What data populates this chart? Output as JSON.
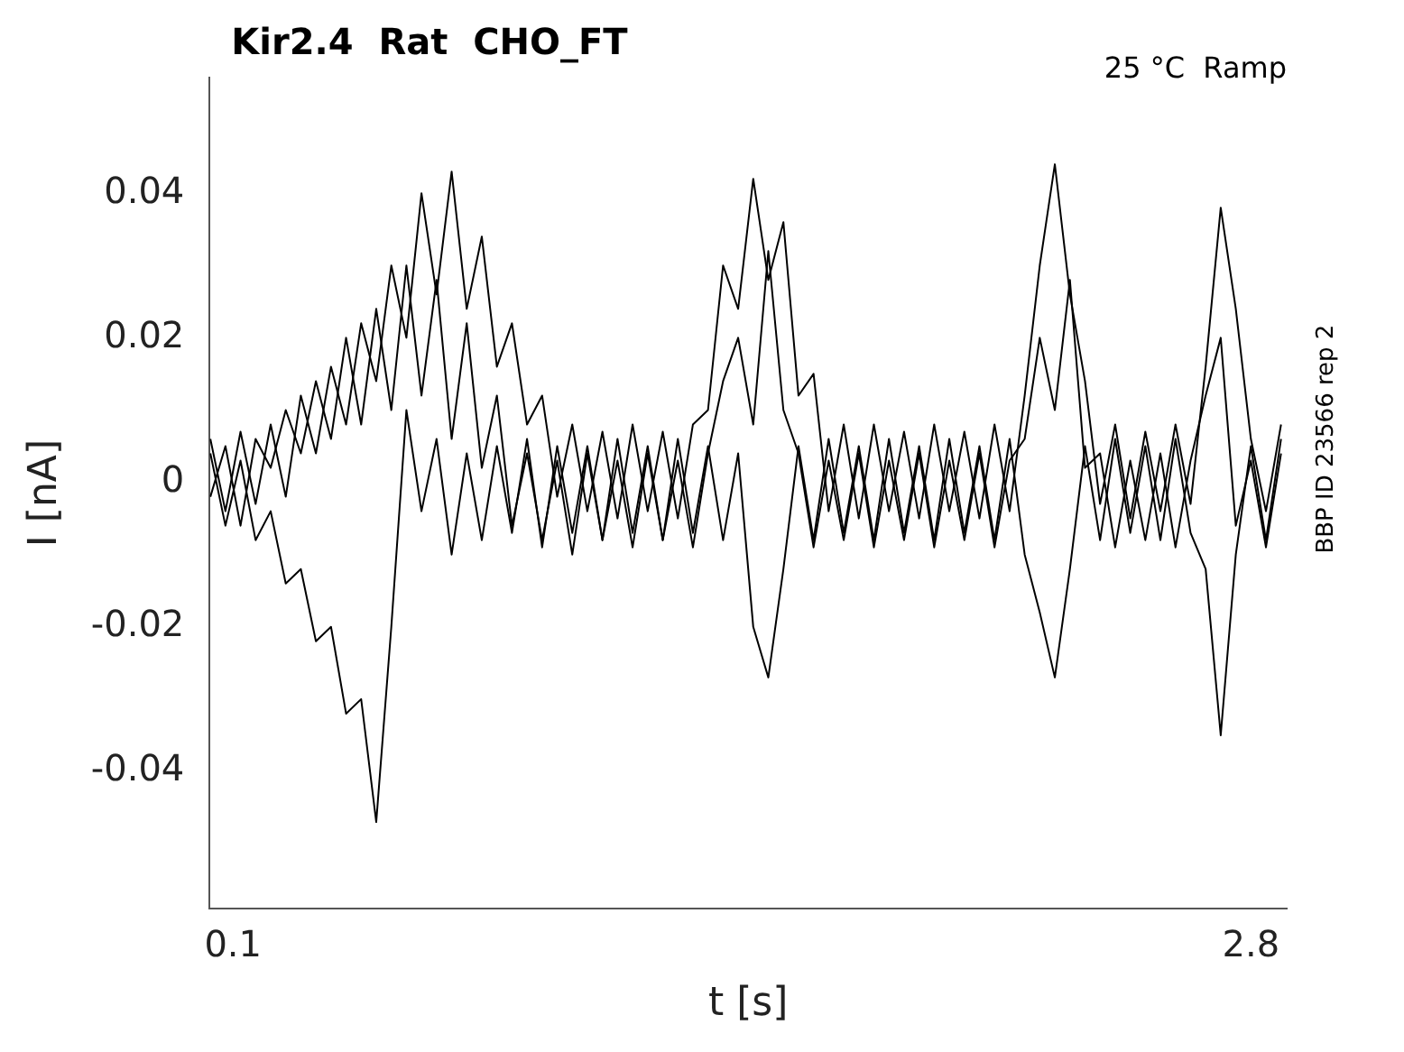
{
  "chart_data": {
    "type": "line",
    "title": "Kir2.4  Rat  CHO_FT",
    "xlabel": "t [s]",
    "ylabel": "I [nA]",
    "annotations": [
      "25 °C  Ramp",
      "BBP ID 23566 rep 2"
    ],
    "x": [
      0.04,
      0.08,
      0.12,
      0.16,
      0.2,
      0.24,
      0.28,
      0.32,
      0.36,
      0.4,
      0.44,
      0.48,
      0.52,
      0.56,
      0.6,
      0.64,
      0.68,
      0.72,
      0.76,
      0.8,
      0.84,
      0.88,
      0.92,
      0.96,
      1.0,
      1.04,
      1.08,
      1.12,
      1.16,
      1.2,
      1.24,
      1.28,
      1.32,
      1.36,
      1.4,
      1.44,
      1.48,
      1.52,
      1.56,
      1.6,
      1.64,
      1.68,
      1.72,
      1.76,
      1.8,
      1.84,
      1.88,
      1.92,
      1.96,
      2.0,
      2.04,
      2.08,
      2.12,
      2.16,
      2.2,
      2.24,
      2.28,
      2.32,
      2.36,
      2.4,
      2.44,
      2.48,
      2.52,
      2.56,
      2.6,
      2.64,
      2.68,
      2.72,
      2.76,
      2.8,
      2.84,
      2.88
    ],
    "xlim": [
      0.038,
      2.895
    ],
    "xticks": [
      0.1,
      2.8
    ],
    "ylim": [
      -0.059,
      0.056
    ],
    "yticks": [
      -0.04,
      -0.02,
      0,
      0.02,
      0.04
    ],
    "grid": false,
    "legend": false,
    "marker": "none",
    "line_style": "solid",
    "series": [
      {
        "color": "#000000",
        "values": [
          0.006,
          -0.004,
          0.007,
          -0.003,
          0.008,
          -0.002,
          0.012,
          0.004,
          0.016,
          0.008,
          0.022,
          0.014,
          0.03,
          0.02,
          0.04,
          0.026,
          0.043,
          0.024,
          0.034,
          0.016,
          0.022,
          0.008,
          0.012,
          -0.002,
          0.008,
          -0.004,
          0.007,
          -0.005,
          0.008,
          -0.004,
          0.007,
          -0.005,
          0.008,
          0.01,
          0.03,
          0.024,
          0.042,
          0.028,
          0.036,
          0.012,
          0.015,
          -0.004,
          0.008,
          -0.005,
          0.008,
          -0.004,
          0.007,
          -0.005,
          0.008,
          -0.004,
          0.007,
          -0.005,
          0.008,
          -0.004,
          0.012,
          0.03,
          0.044,
          0.026,
          0.014,
          -0.003,
          0.008,
          -0.005,
          0.007,
          -0.004,
          0.008,
          -0.003,
          0.016,
          0.038,
          0.024,
          0.006,
          -0.004,
          0.008
        ]
      },
      {
        "color": "#000000",
        "values": [
          0.004,
          -0.006,
          0.003,
          -0.008,
          -0.004,
          -0.014,
          -0.012,
          -0.022,
          -0.02,
          -0.032,
          -0.03,
          -0.047,
          -0.02,
          0.01,
          -0.004,
          0.006,
          -0.01,
          0.004,
          -0.008,
          0.005,
          -0.007,
          0.006,
          -0.009,
          0.005,
          -0.007,
          0.005,
          -0.008,
          0.006,
          -0.007,
          0.005,
          -0.008,
          0.006,
          -0.007,
          0.005,
          -0.008,
          0.004,
          -0.02,
          -0.027,
          -0.012,
          0.005,
          -0.008,
          0.006,
          -0.007,
          0.005,
          -0.008,
          0.006,
          -0.007,
          0.005,
          -0.008,
          0.006,
          -0.007,
          0.005,
          -0.008,
          0.006,
          -0.01,
          -0.018,
          -0.027,
          -0.012,
          0.005,
          -0.008,
          0.006,
          -0.007,
          0.005,
          -0.008,
          0.006,
          -0.007,
          -0.012,
          -0.035,
          -0.01,
          0.005,
          -0.008,
          0.006
        ]
      },
      {
        "color": "#000000",
        "values": [
          -0.002,
          0.005,
          -0.006,
          0.006,
          0.002,
          0.01,
          0.004,
          0.014,
          0.006,
          0.02,
          0.008,
          0.024,
          0.01,
          0.03,
          0.012,
          0.028,
          0.006,
          0.022,
          0.002,
          0.012,
          -0.006,
          0.004,
          -0.008,
          0.003,
          -0.01,
          0.004,
          -0.008,
          0.003,
          -0.009,
          0.004,
          -0.008,
          0.003,
          -0.009,
          0.004,
          0.014,
          0.02,
          0.008,
          0.032,
          0.01,
          0.004,
          -0.009,
          0.003,
          -0.008,
          0.004,
          -0.009,
          0.003,
          -0.008,
          0.004,
          -0.009,
          0.003,
          -0.008,
          0.004,
          -0.009,
          0.003,
          0.006,
          0.02,
          0.01,
          0.028,
          0.002,
          0.004,
          -0.009,
          0.003,
          -0.008,
          0.004,
          -0.009,
          0.003,
          0.012,
          0.02,
          -0.006,
          0.003,
          -0.009,
          0.004
        ]
      }
    ]
  }
}
